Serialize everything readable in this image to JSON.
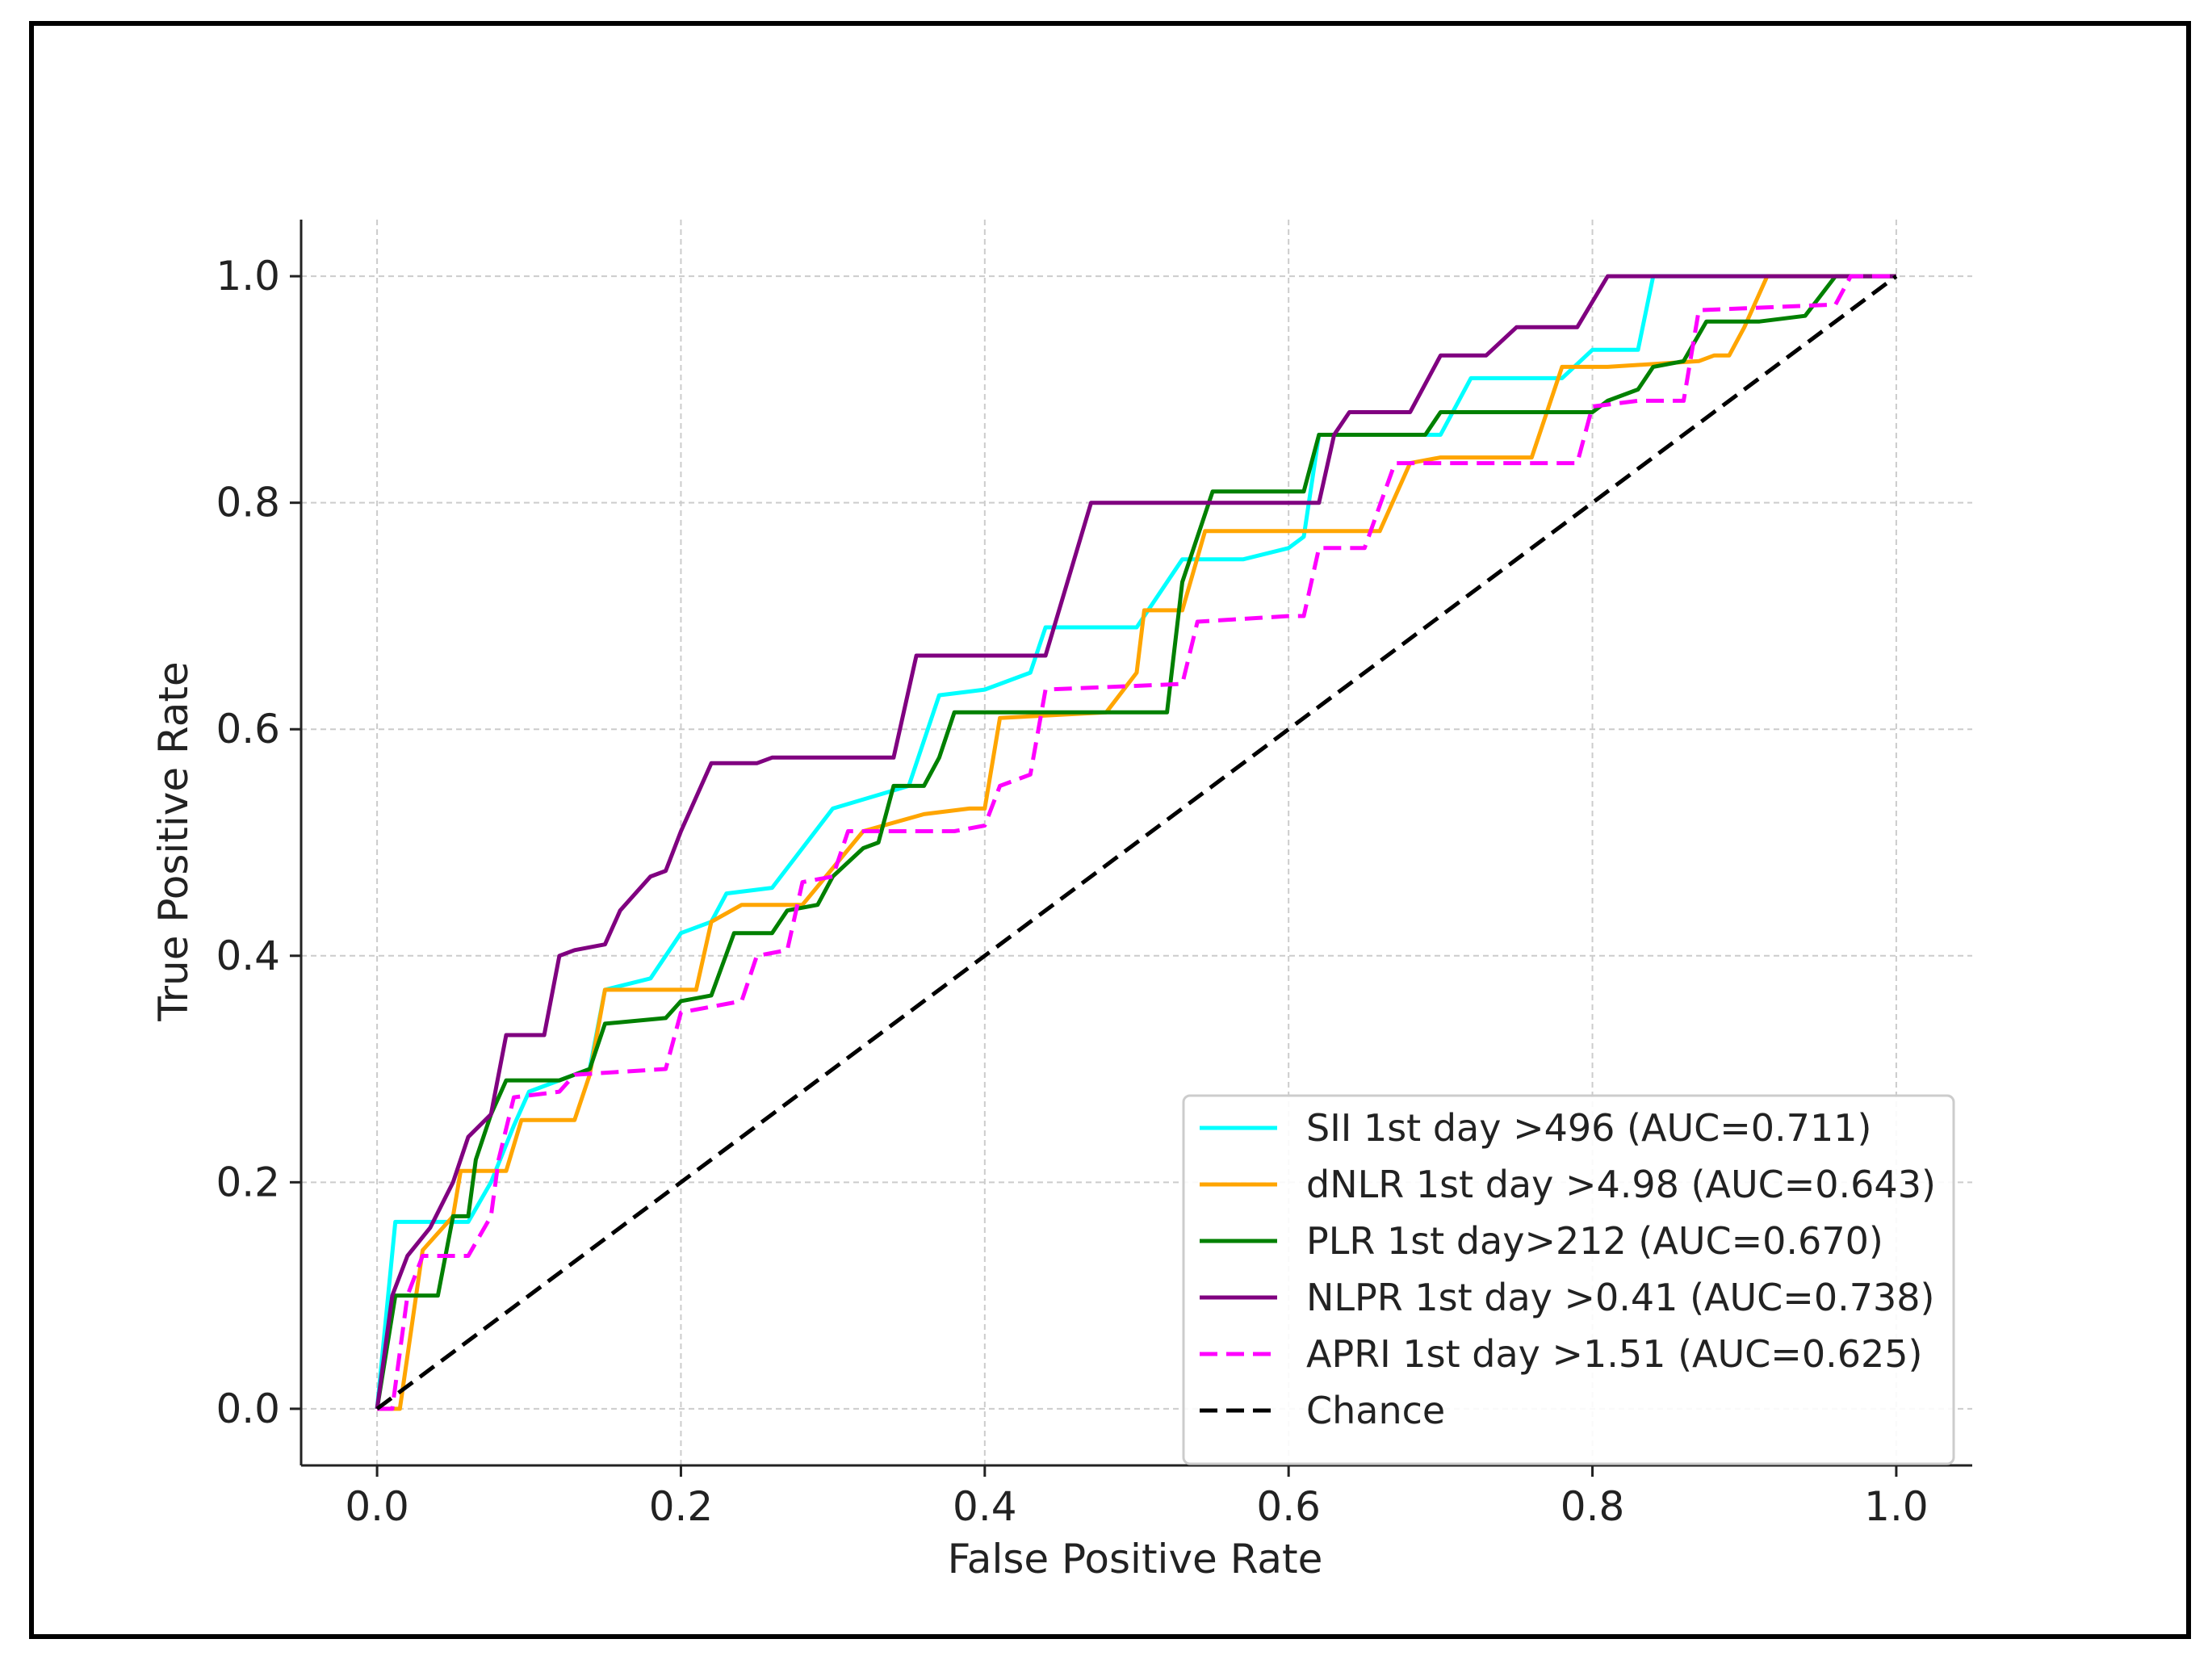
{
  "chart_data": {
    "type": "line",
    "title": "",
    "xlabel": "False Positive Rate",
    "ylabel": "True Positive Rate",
    "xlim": [
      -0.05,
      1.05
    ],
    "ylim": [
      -0.05,
      1.05
    ],
    "xticks": [
      "0.0",
      "0.2",
      "0.4",
      "0.6",
      "0.8",
      "1.0"
    ],
    "yticks": [
      "0.0",
      "0.2",
      "0.4",
      "0.6",
      "0.8",
      "1.0"
    ],
    "grid": true,
    "legend_position": "lower-right",
    "series": [
      {
        "name": "SII 1st day >496 (AUC=0.711)",
        "color": "#00ffff",
        "dash": "solid",
        "points": [
          [
            0,
            0
          ],
          [
            0.012,
            0.165
          ],
          [
            0.06,
            0.165
          ],
          [
            0.075,
            0.2
          ],
          [
            0.09,
            0.25
          ],
          [
            0.1,
            0.28
          ],
          [
            0.14,
            0.3
          ],
          [
            0.15,
            0.37
          ],
          [
            0.18,
            0.38
          ],
          [
            0.2,
            0.42
          ],
          [
            0.22,
            0.43
          ],
          [
            0.23,
            0.455
          ],
          [
            0.26,
            0.46
          ],
          [
            0.28,
            0.495
          ],
          [
            0.3,
            0.53
          ],
          [
            0.35,
            0.55
          ],
          [
            0.37,
            0.63
          ],
          [
            0.4,
            0.635
          ],
          [
            0.43,
            0.65
          ],
          [
            0.44,
            0.69
          ],
          [
            0.5,
            0.69
          ],
          [
            0.53,
            0.75
          ],
          [
            0.57,
            0.75
          ],
          [
            0.6,
            0.76
          ],
          [
            0.61,
            0.77
          ],
          [
            0.62,
            0.86
          ],
          [
            0.7,
            0.86
          ],
          [
            0.72,
            0.91
          ],
          [
            0.78,
            0.91
          ],
          [
            0.8,
            0.935
          ],
          [
            0.83,
            0.935
          ],
          [
            0.84,
            1.0
          ],
          [
            1.0,
            1.0
          ]
        ]
      },
      {
        "name": "dNLR 1st day >4.98 (AUC=0.643)",
        "color": "#ffa500",
        "dash": "solid",
        "points": [
          [
            0,
            0
          ],
          [
            0.015,
            0.0
          ],
          [
            0.03,
            0.14
          ],
          [
            0.05,
            0.17
          ],
          [
            0.055,
            0.21
          ],
          [
            0.085,
            0.21
          ],
          [
            0.095,
            0.255
          ],
          [
            0.13,
            0.255
          ],
          [
            0.14,
            0.295
          ],
          [
            0.15,
            0.37
          ],
          [
            0.2,
            0.37
          ],
          [
            0.21,
            0.37
          ],
          [
            0.22,
            0.43
          ],
          [
            0.24,
            0.445
          ],
          [
            0.28,
            0.445
          ],
          [
            0.32,
            0.51
          ],
          [
            0.36,
            0.525
          ],
          [
            0.39,
            0.53
          ],
          [
            0.4,
            0.53
          ],
          [
            0.41,
            0.61
          ],
          [
            0.48,
            0.615
          ],
          [
            0.5,
            0.65
          ],
          [
            0.505,
            0.705
          ],
          [
            0.53,
            0.705
          ],
          [
            0.545,
            0.775
          ],
          [
            0.66,
            0.775
          ],
          [
            0.68,
            0.835
          ],
          [
            0.7,
            0.84
          ],
          [
            0.76,
            0.84
          ],
          [
            0.78,
            0.92
          ],
          [
            0.81,
            0.92
          ],
          [
            0.87,
            0.925
          ],
          [
            0.88,
            0.93
          ],
          [
            0.89,
            0.93
          ],
          [
            0.9,
            0.955
          ],
          [
            0.915,
            1.0
          ],
          [
            1.0,
            1.0
          ]
        ]
      },
      {
        "name": "PLR 1st day>212 (AUC=0.670)",
        "color": "#008000",
        "dash": "solid",
        "points": [
          [
            0,
            0
          ],
          [
            0.012,
            0.1
          ],
          [
            0.04,
            0.1
          ],
          [
            0.05,
            0.17
          ],
          [
            0.06,
            0.17
          ],
          [
            0.065,
            0.22
          ],
          [
            0.075,
            0.26
          ],
          [
            0.085,
            0.29
          ],
          [
            0.12,
            0.29
          ],
          [
            0.14,
            0.3
          ],
          [
            0.15,
            0.34
          ],
          [
            0.19,
            0.345
          ],
          [
            0.2,
            0.36
          ],
          [
            0.22,
            0.365
          ],
          [
            0.235,
            0.42
          ],
          [
            0.26,
            0.42
          ],
          [
            0.27,
            0.44
          ],
          [
            0.29,
            0.445
          ],
          [
            0.3,
            0.47
          ],
          [
            0.32,
            0.495
          ],
          [
            0.33,
            0.5
          ],
          [
            0.34,
            0.55
          ],
          [
            0.36,
            0.55
          ],
          [
            0.37,
            0.575
          ],
          [
            0.38,
            0.615
          ],
          [
            0.52,
            0.615
          ],
          [
            0.53,
            0.73
          ],
          [
            0.55,
            0.81
          ],
          [
            0.61,
            0.81
          ],
          [
            0.62,
            0.86
          ],
          [
            0.69,
            0.86
          ],
          [
            0.7,
            0.88
          ],
          [
            0.8,
            0.88
          ],
          [
            0.81,
            0.89
          ],
          [
            0.83,
            0.9
          ],
          [
            0.84,
            0.92
          ],
          [
            0.86,
            0.925
          ],
          [
            0.875,
            0.96
          ],
          [
            0.91,
            0.96
          ],
          [
            0.94,
            0.965
          ],
          [
            0.96,
            1.0
          ],
          [
            1.0,
            1.0
          ]
        ]
      },
      {
        "name": "NLPR 1st day >0.41 (AUC=0.738)",
        "color": "#800080",
        "dash": "solid",
        "points": [
          [
            0,
            0
          ],
          [
            0.01,
            0.1
          ],
          [
            0.02,
            0.135
          ],
          [
            0.035,
            0.16
          ],
          [
            0.05,
            0.2
          ],
          [
            0.06,
            0.24
          ],
          [
            0.075,
            0.26
          ],
          [
            0.085,
            0.33
          ],
          [
            0.11,
            0.33
          ],
          [
            0.12,
            0.4
          ],
          [
            0.13,
            0.405
          ],
          [
            0.15,
            0.41
          ],
          [
            0.16,
            0.44
          ],
          [
            0.18,
            0.47
          ],
          [
            0.19,
            0.475
          ],
          [
            0.2,
            0.51
          ],
          [
            0.22,
            0.57
          ],
          [
            0.25,
            0.57
          ],
          [
            0.26,
            0.575
          ],
          [
            0.34,
            0.575
          ],
          [
            0.355,
            0.665
          ],
          [
            0.44,
            0.665
          ],
          [
            0.47,
            0.8
          ],
          [
            0.62,
            0.8
          ],
          [
            0.63,
            0.86
          ],
          [
            0.64,
            0.88
          ],
          [
            0.68,
            0.88
          ],
          [
            0.7,
            0.93
          ],
          [
            0.73,
            0.93
          ],
          [
            0.75,
            0.955
          ],
          [
            0.79,
            0.955
          ],
          [
            0.81,
            1.0
          ],
          [
            1.0,
            1.0
          ]
        ]
      },
      {
        "name": "APRI 1st day >1.51 (AUC=0.625)",
        "color": "#ff00ff",
        "dash": "dashed",
        "points": [
          [
            0,
            0
          ],
          [
            0.01,
            0.0
          ],
          [
            0.02,
            0.1
          ],
          [
            0.03,
            0.135
          ],
          [
            0.06,
            0.135
          ],
          [
            0.075,
            0.17
          ],
          [
            0.08,
            0.22
          ],
          [
            0.09,
            0.275
          ],
          [
            0.12,
            0.28
          ],
          [
            0.13,
            0.295
          ],
          [
            0.19,
            0.3
          ],
          [
            0.2,
            0.35
          ],
          [
            0.24,
            0.36
          ],
          [
            0.25,
            0.4
          ],
          [
            0.27,
            0.405
          ],
          [
            0.28,
            0.465
          ],
          [
            0.3,
            0.47
          ],
          [
            0.31,
            0.51
          ],
          [
            0.38,
            0.51
          ],
          [
            0.4,
            0.515
          ],
          [
            0.41,
            0.55
          ],
          [
            0.43,
            0.56
          ],
          [
            0.44,
            0.635
          ],
          [
            0.53,
            0.64
          ],
          [
            0.54,
            0.695
          ],
          [
            0.6,
            0.7
          ],
          [
            0.61,
            0.7
          ],
          [
            0.62,
            0.76
          ],
          [
            0.65,
            0.76
          ],
          [
            0.67,
            0.835
          ],
          [
            0.79,
            0.835
          ],
          [
            0.8,
            0.885
          ],
          [
            0.83,
            0.89
          ],
          [
            0.86,
            0.89
          ],
          [
            0.87,
            0.97
          ],
          [
            0.96,
            0.975
          ],
          [
            0.97,
            1.0
          ],
          [
            1.0,
            1.0
          ]
        ]
      },
      {
        "name": "Chance",
        "color": "#000000",
        "dash": "dashed",
        "points": [
          [
            0,
            0
          ],
          [
            1,
            1
          ]
        ]
      }
    ]
  }
}
